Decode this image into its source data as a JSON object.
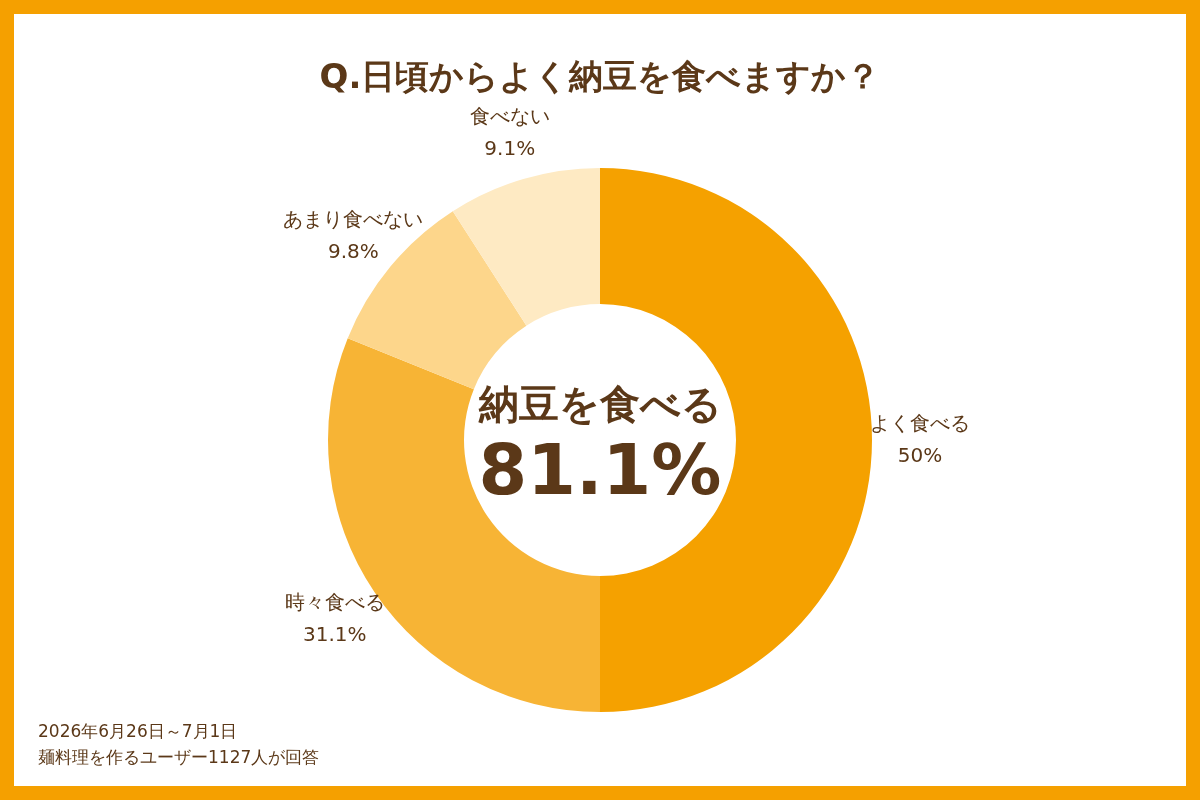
{
  "chart_data": {
    "type": "donut",
    "title": "Q.日頃からよく納豆を食べますか？",
    "categories": [
      "よく食べる",
      "時々食べる",
      "あまり食べない",
      "食べない"
    ],
    "values": [
      50,
      31.1,
      9.8,
      9.1
    ],
    "colors": [
      "#f5a100",
      "#f7b435",
      "#fdd68b",
      "#feeac3"
    ],
    "value_labels": [
      "50%",
      "31.1%",
      "9.8%",
      "9.1%"
    ],
    "legend": false,
    "annotations": [
      "納豆を食べる",
      "81.1%",
      "2026年6月26日～7月1日",
      "麺料理を作るユーザー1127人が回答"
    ]
  }
}
